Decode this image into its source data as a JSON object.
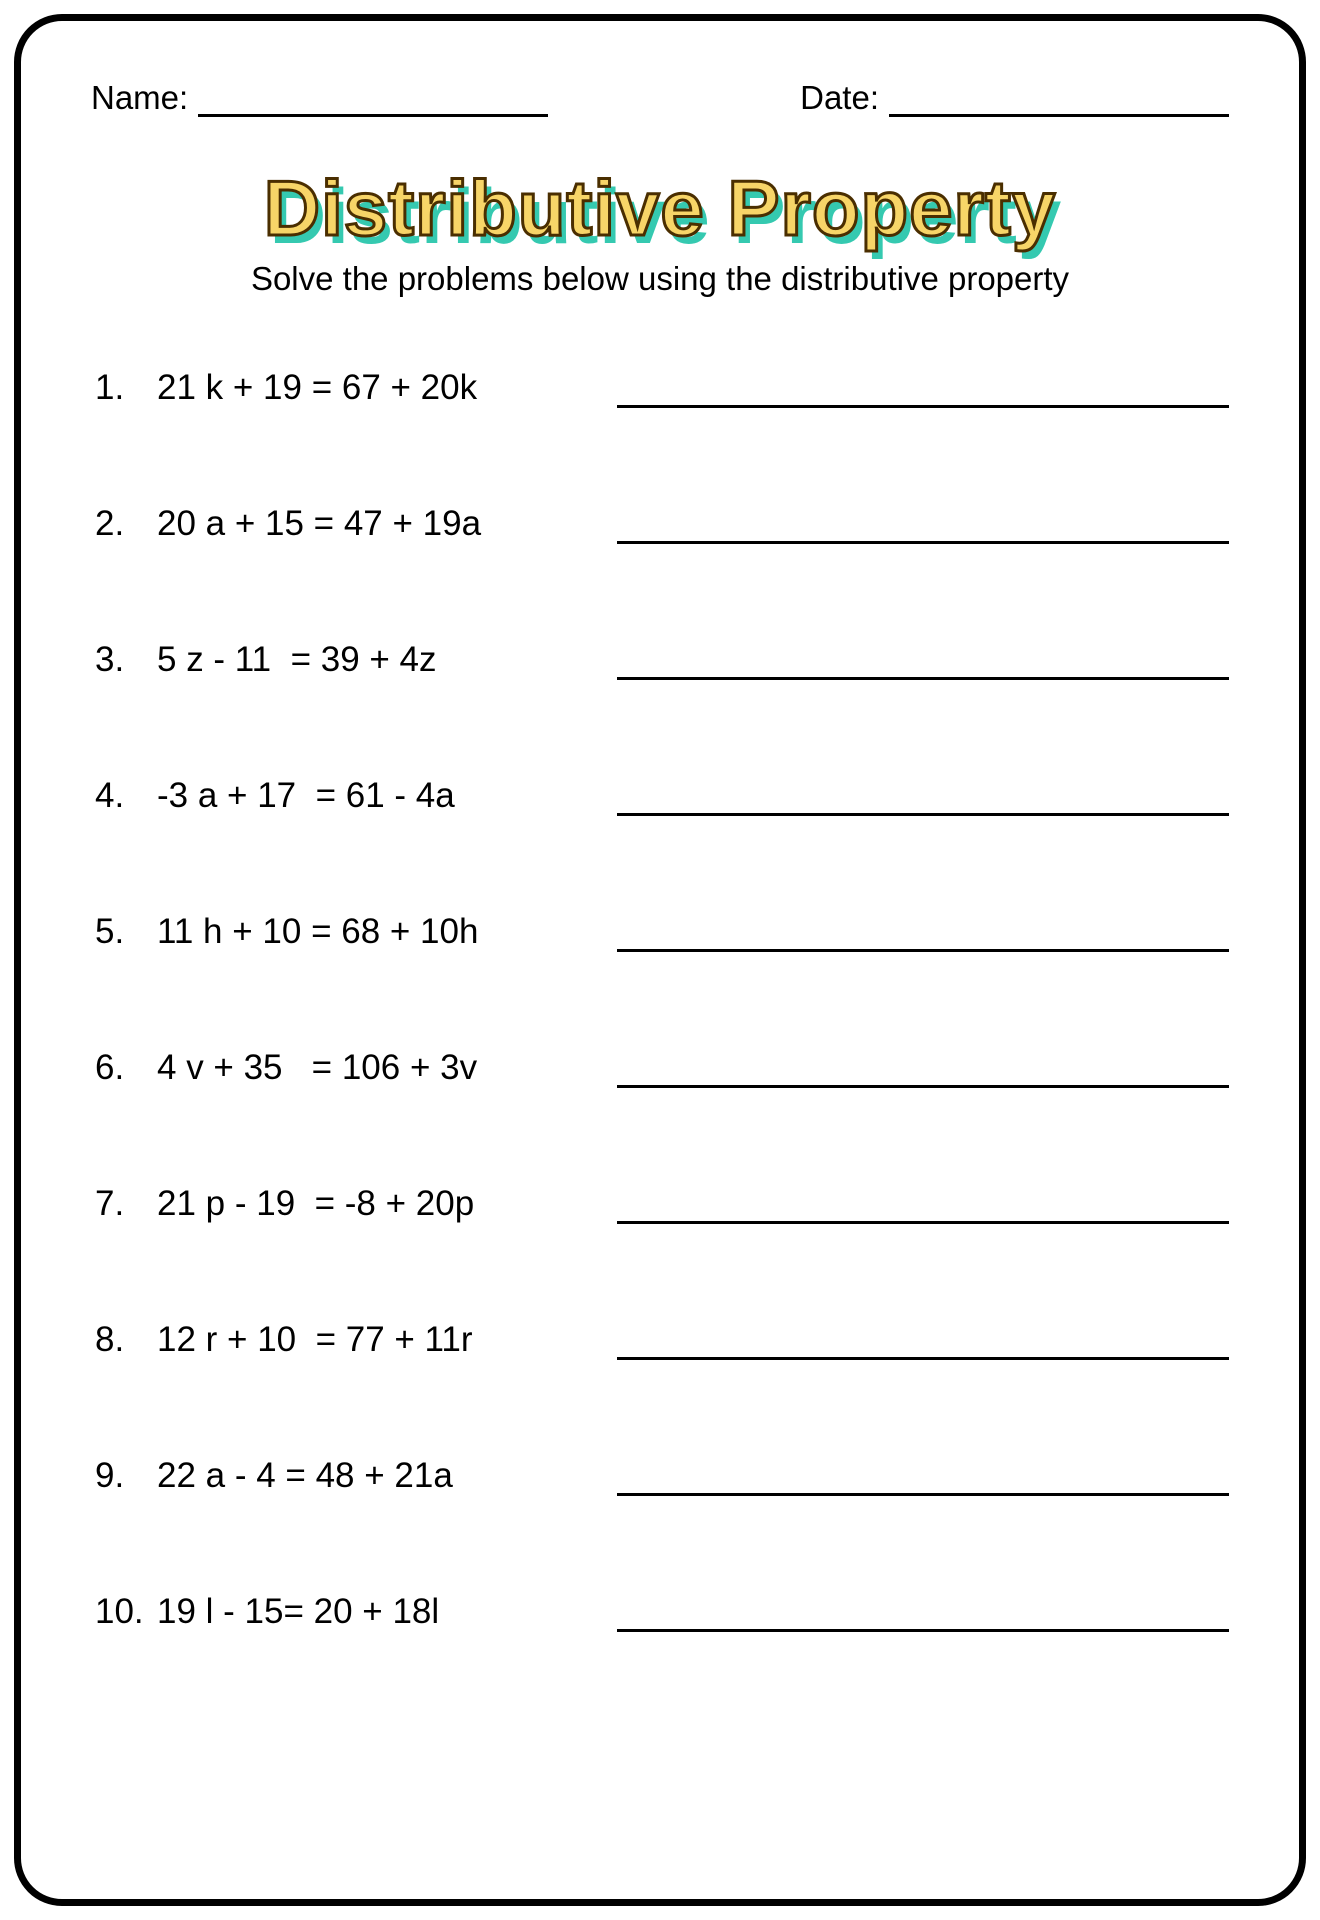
{
  "header": {
    "name_label": "Name:",
    "date_label": "Date:"
  },
  "title": "Distributive Property",
  "subtitle": "Solve the problems below using the distributive property",
  "title_color": "#f7d568",
  "title_shadow_color": "#35c9b0",
  "title_stroke_color": "#4a2e00",
  "border_color": "#000000",
  "text_color": "#000000",
  "problems": [
    {
      "n": "1.",
      "eq": "21 k + 19 = 67 + 20k"
    },
    {
      "n": "2.",
      "eq": "20 a + 15 = 47 + 19a"
    },
    {
      "n": "3.",
      "eq": "5 z - 11  = 39 + 4z"
    },
    {
      "n": "4.",
      "eq": "-3 a + 17  = 61 - 4a"
    },
    {
      "n": "5.",
      "eq": "11 h + 10 = 68 + 10h"
    },
    {
      "n": "6.",
      "eq": "4 v + 35   = 106 + 3v"
    },
    {
      "n": "7.",
      "eq": "21 p - 19  = -8 + 20p"
    },
    {
      "n": "8.",
      "eq": "12 r + 10  = 77 + 11r"
    },
    {
      "n": "9.",
      "eq": "22 a - 4 = 48 + 21a"
    },
    {
      "n": "10.",
      "eq": "19 l - 15= 20 + 18l"
    }
  ]
}
